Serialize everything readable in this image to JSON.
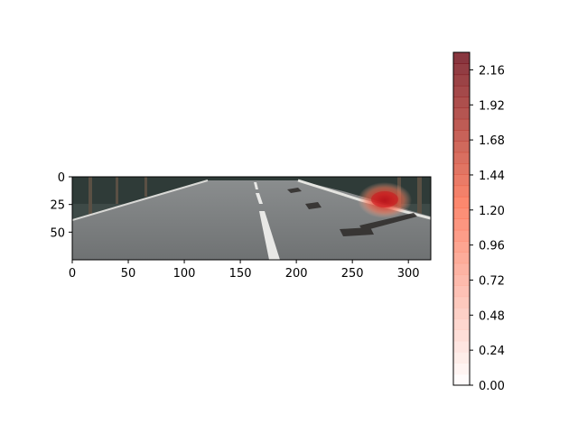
{
  "chart_data": {
    "type": "heatmap",
    "background": "road-photo",
    "xlim": [
      0,
      320
    ],
    "ylim": [
      0,
      75
    ],
    "y_inverted": true,
    "x_ticks": [
      "0",
      "50",
      "100",
      "150",
      "200",
      "250",
      "300"
    ],
    "y_ticks": [
      "0",
      "25",
      "50"
    ],
    "overlay": {
      "colormap": "Reds",
      "alpha": 0.75,
      "hotspot_center": [
        277,
        20
      ],
      "hotspot_radius": [
        22,
        14
      ],
      "max_value": 2.28
    },
    "colorbar": {
      "min": 0.0,
      "max": 2.28,
      "levels": 30,
      "ticks": [
        "0.00",
        "0.24",
        "0.48",
        "0.72",
        "0.96",
        "1.20",
        "1.44",
        "1.68",
        "1.92",
        "2.16"
      ],
      "color_low": "#ffffff",
      "color_mid": "#fb6a4a",
      "color_high": "#67000d"
    }
  }
}
